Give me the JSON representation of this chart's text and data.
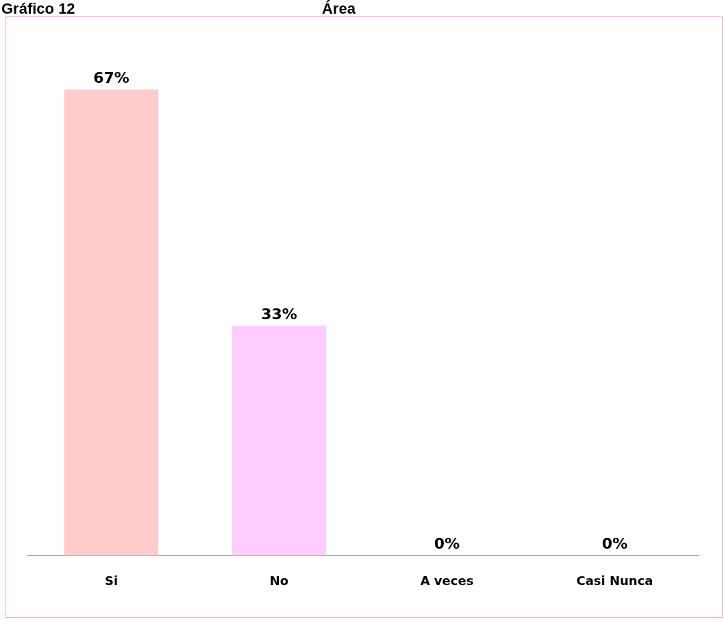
{
  "chart_data": {
    "type": "bar",
    "title": "Gráfico 12",
    "subtitle": "Área",
    "categories": [
      "Si",
      "No",
      "A veces",
      "Casi Nunca"
    ],
    "values": [
      67,
      33,
      0,
      0
    ],
    "colors": [
      "#ffcccc",
      "#ffccff",
      "#c0709a",
      "#c070c0"
    ],
    "value_labels": [
      "67%",
      "33%",
      "0%",
      "0%"
    ],
    "grid": false,
    "legend": false
  }
}
